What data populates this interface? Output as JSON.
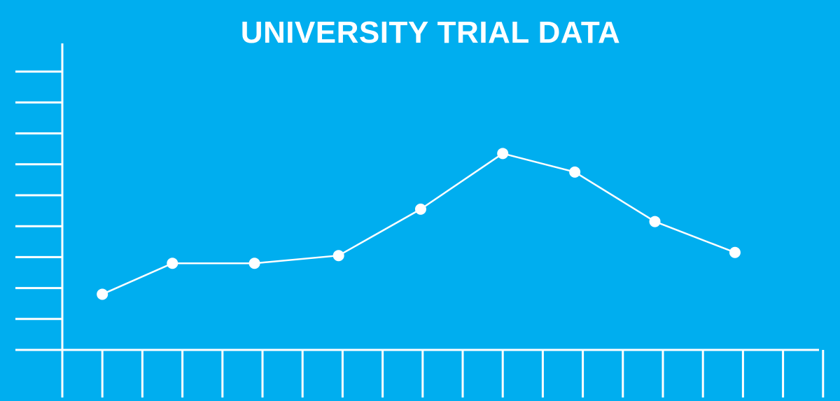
{
  "chart_data": {
    "type": "line",
    "title": "UNIVERSITY TRIAL DATA",
    "xlabel": "",
    "ylabel": "",
    "grid": false,
    "ylim": [
      0,
      9
    ],
    "y_ticks": 9,
    "x_ticks": 19,
    "series": [
      {
        "x": [
          1,
          2.75,
          4.8,
          6.9,
          8.95,
          11,
          12.8,
          14.8,
          16.8
        ],
        "values": [
          1.8,
          2.8,
          2.8,
          3.05,
          4.55,
          6.35,
          5.75,
          4.15,
          3.15
        ]
      }
    ],
    "colors": {
      "background": "#00AEEF",
      "foreground": "#FFFFFF"
    }
  }
}
